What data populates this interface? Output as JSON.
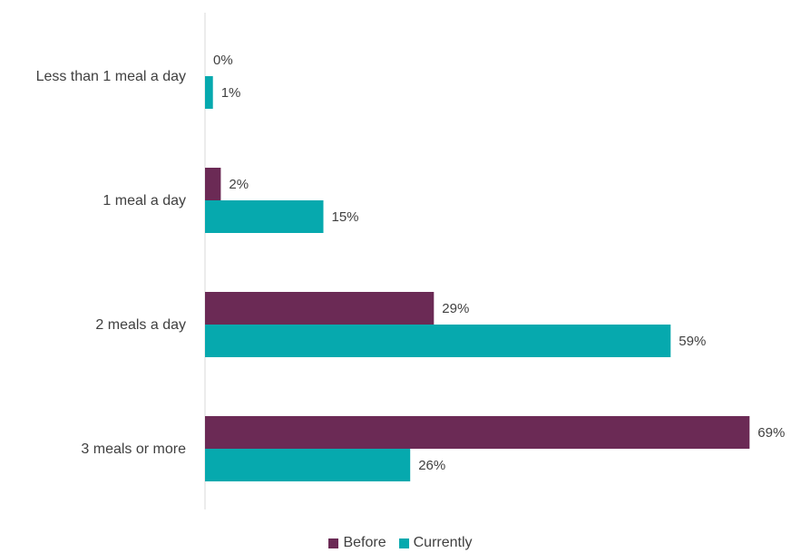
{
  "chart_data": {
    "type": "bar",
    "orientation": "horizontal",
    "categories": [
      "Less than 1 meal a day",
      "1 meal a day",
      "2 meals a day",
      "3 meals or more"
    ],
    "series": [
      {
        "name": "Before",
        "color": "#6b2a55",
        "values": [
          0,
          2,
          29,
          69
        ],
        "labels": [
          "0%",
          "2%",
          "29%",
          "69%"
        ]
      },
      {
        "name": "Currently",
        "color": "#06a9ae",
        "values": [
          1,
          15,
          59,
          26
        ],
        "labels": [
          "1%",
          "15%",
          "59%",
          "26%"
        ]
      }
    ],
    "xlim": [
      0,
      70
    ],
    "grid": false,
    "legend": "bottom"
  }
}
